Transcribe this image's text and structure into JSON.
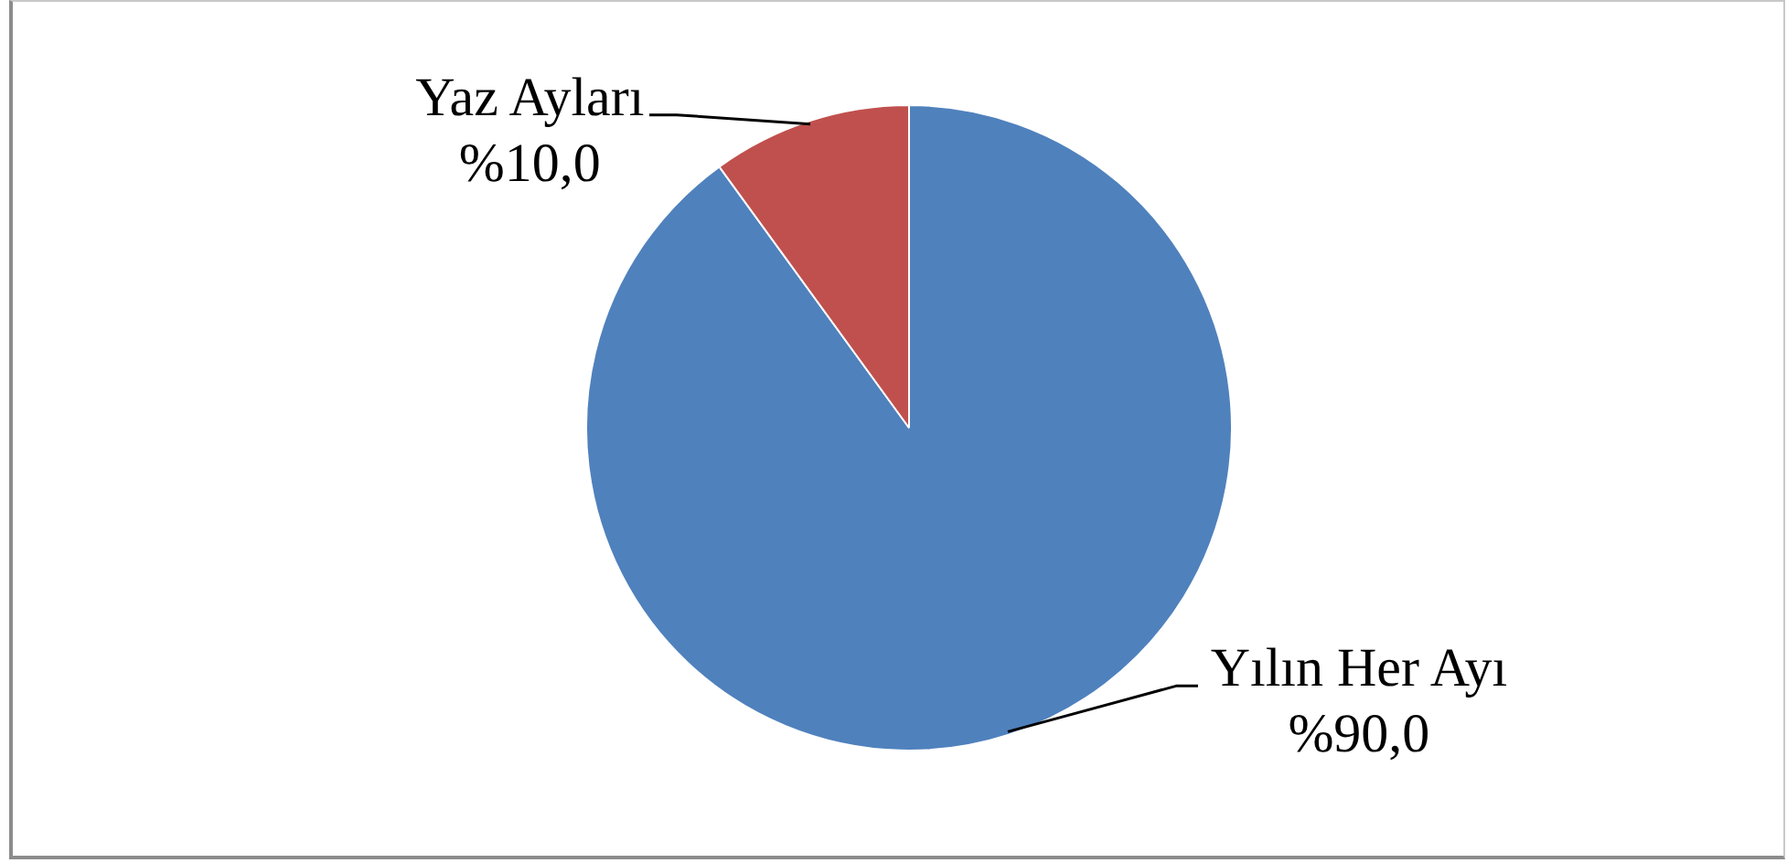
{
  "chart_data": {
    "type": "pie",
    "categories": [
      "Yılın Her Ayı",
      "Yaz Ayları"
    ],
    "values": [
      90,
      10
    ],
    "colors": [
      "#4f81bd",
      "#c0504d"
    ],
    "value_labels": [
      "%90,0",
      "%10,0"
    ]
  }
}
